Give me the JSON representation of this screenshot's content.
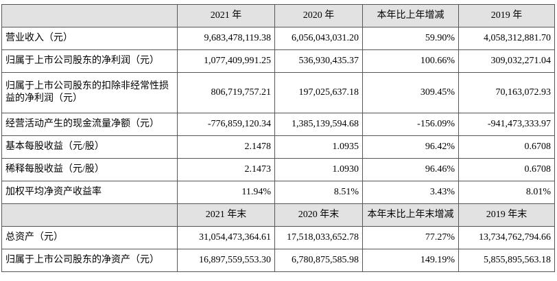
{
  "table": {
    "header": [
      "2021 年",
      "2020 年",
      "本年比上年增减",
      "2019 年"
    ],
    "rows": [
      [
        "营业收入（元）",
        "9,683,478,119.38",
        "6,056,043,031.20",
        "59.90%",
        "4,058,312,881.70"
      ],
      [
        "归属于上市公司股东的净利润（元）",
        "1,077,409,991.25",
        "536,930,435.37",
        "100.66%",
        "309,032,271.04"
      ],
      [
        "归属于上市公司股东的扣除非经常性损益的净利润（元）",
        "806,719,757.21",
        "197,025,637.18",
        "309.45%",
        "70,163,072.93"
      ],
      [
        "经营活动产生的现金流量净额（元）",
        "-776,859,120.34",
        "1,385,139,594.68",
        "-156.09%",
        "-941,473,333.97"
      ],
      [
        "基本每股收益（元/股）",
        "2.1478",
        "1.0935",
        "96.42%",
        "0.6708"
      ],
      [
        "稀释每股收益（元/股）",
        "2.1473",
        "1.0930",
        "96.46%",
        "0.6708"
      ],
      [
        "加权平均净资产收益率",
        "11.94%",
        "8.51%",
        "3.43%",
        "8.01%"
      ]
    ],
    "header2": [
      "2021 年末",
      "2020 年末",
      "本年末比上年末增减",
      "2019 年末"
    ],
    "rows2": [
      [
        "总资产（元）",
        "31,054,473,364.61",
        "17,518,033,652.78",
        "77.27%",
        "13,734,762,794.66"
      ],
      [
        "归属于上市公司股东的净资产（元）",
        "16,897,559,553.30",
        "6,780,875,585.98",
        "149.19%",
        "5,855,895,563.18"
      ]
    ]
  }
}
